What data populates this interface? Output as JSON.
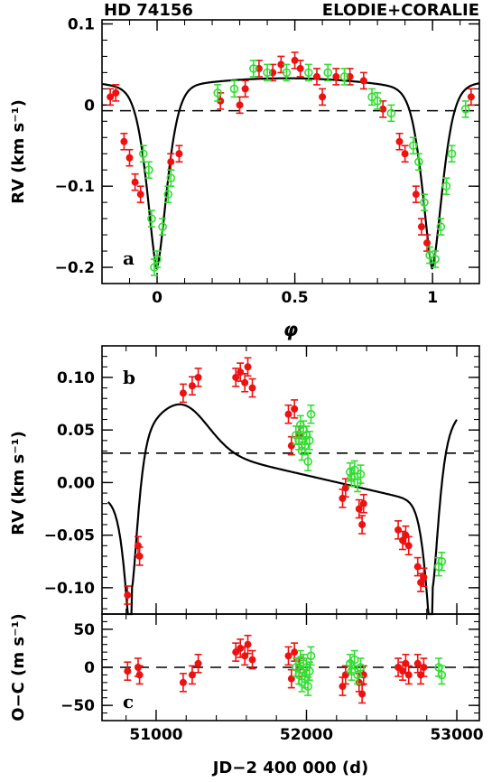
{
  "chart_data": [
    {
      "panel_label": "a",
      "type": "scatter",
      "title_left": "HD 74156",
      "title_right": "ELODIE+CORALIE",
      "xlabel": "φ",
      "ylabel": "RV (km s⁻¹)",
      "xlim": [
        -0.2,
        1.17
      ],
      "ylim": [
        -0.22,
        0.105
      ],
      "xticks": [
        0,
        0.5,
        1
      ],
      "xtick_labels": [
        "0",
        "0.5",
        "1"
      ],
      "yticks": [
        -0.2,
        -0.1,
        0,
        0.1
      ],
      "ytick_labels": [
        "−0.2",
        "−0.1",
        "0",
        "0.1"
      ],
      "reference_line_y": -0.007,
      "model_curve_color": "#000000",
      "series": [
        {
          "color": "#ee1111",
          "marker": "filled-circle",
          "points": [
            [
              -0.17,
              0.01
            ],
            [
              -0.15,
              0.015
            ],
            [
              -0.12,
              -0.045
            ],
            [
              -0.1,
              -0.065
            ],
            [
              -0.08,
              -0.095
            ],
            [
              -0.06,
              -0.11
            ],
            [
              0.05,
              -0.07
            ],
            [
              0.08,
              -0.06
            ],
            [
              0.23,
              0.005
            ],
            [
              0.3,
              0.0
            ],
            [
              0.32,
              0.02
            ],
            [
              0.37,
              0.045
            ],
            [
              0.42,
              0.04
            ],
            [
              0.45,
              0.05
            ],
            [
              0.5,
              0.055
            ],
            [
              0.52,
              0.045
            ],
            [
              0.58,
              0.035
            ],
            [
              0.6,
              0.01
            ],
            [
              0.65,
              0.035
            ],
            [
              0.7,
              0.035
            ],
            [
              0.75,
              0.03
            ],
            [
              0.82,
              -0.005
            ],
            [
              0.88,
              -0.045
            ],
            [
              0.9,
              -0.06
            ],
            [
              0.94,
              -0.11
            ],
            [
              0.96,
              -0.15
            ],
            [
              0.98,
              -0.17
            ],
            [
              1.14,
              0.01
            ]
          ]
        },
        {
          "color": "#33dd33",
          "marker": "open-circle",
          "points": [
            [
              -0.05,
              -0.06
            ],
            [
              -0.03,
              -0.08
            ],
            [
              -0.02,
              -0.14
            ],
            [
              -0.01,
              -0.2
            ],
            [
              0.0,
              -0.19
            ],
            [
              0.02,
              -0.15
            ],
            [
              0.04,
              -0.11
            ],
            [
              0.05,
              -0.09
            ],
            [
              0.22,
              0.015
            ],
            [
              0.28,
              0.02
            ],
            [
              0.35,
              0.045
            ],
            [
              0.4,
              0.04
            ],
            [
              0.47,
              0.04
            ],
            [
              0.55,
              0.04
            ],
            [
              0.62,
              0.04
            ],
            [
              0.68,
              0.035
            ],
            [
              0.78,
              0.01
            ],
            [
              0.8,
              0.005
            ],
            [
              0.85,
              -0.01
            ],
            [
              0.93,
              -0.05
            ],
            [
              0.95,
              -0.07
            ],
            [
              0.97,
              -0.12
            ],
            [
              0.99,
              -0.185
            ],
            [
              1.01,
              -0.19
            ],
            [
              1.03,
              -0.15
            ],
            [
              1.05,
              -0.1
            ],
            [
              1.07,
              -0.06
            ],
            [
              1.12,
              -0.005
            ]
          ]
        }
      ]
    },
    {
      "panel_label": "b",
      "type": "scatter",
      "ylabel": "RV (km s⁻¹)",
      "xlim": [
        50640,
        53150
      ],
      "ylim": [
        -0.125,
        0.13
      ],
      "xticks": [
        51000,
        52000,
        53000
      ],
      "yticks": [
        -0.1,
        -0.05,
        0.0,
        0.05,
        0.1
      ],
      "ytick_labels": [
        "−0.10",
        "−0.05",
        "0.00",
        "0.05",
        "0.10"
      ],
      "reference_line_y": 0.028,
      "series": [
        {
          "color": "#ee1111",
          "marker": "filled-circle",
          "points": [
            [
              50810,
              -0.107
            ],
            [
              50880,
              -0.06
            ],
            [
              50890,
              -0.07
            ],
            [
              51180,
              0.085
            ],
            [
              51240,
              0.092
            ],
            [
              51280,
              0.1
            ],
            [
              51530,
              0.1
            ],
            [
              51560,
              0.105
            ],
            [
              51590,
              0.095
            ],
            [
              51610,
              0.11
            ],
            [
              51640,
              0.09
            ],
            [
              51880,
              0.065
            ],
            [
              51900,
              0.035
            ],
            [
              51920,
              0.07
            ],
            [
              51950,
              0.045
            ],
            [
              52240,
              -0.015
            ],
            [
              52260,
              -0.005
            ],
            [
              52350,
              -0.025
            ],
            [
              52370,
              -0.04
            ],
            [
              52380,
              -0.02
            ],
            [
              52610,
              -0.045
            ],
            [
              52640,
              -0.055
            ],
            [
              52660,
              -0.05
            ],
            [
              52680,
              -0.06
            ],
            [
              52740,
              -0.08
            ],
            [
              52760,
              -0.095
            ],
            [
              52780,
              -0.09
            ]
          ]
        },
        {
          "color": "#33dd33",
          "marker": "open-circle",
          "points": [
            [
              51930,
              0.045
            ],
            [
              51950,
              0.04
            ],
            [
              51960,
              0.055
            ],
            [
              51970,
              0.03
            ],
            [
              51980,
              0.05
            ],
            [
              51990,
              0.035
            ],
            [
              52000,
              0.045
            ],
            [
              52010,
              0.02
            ],
            [
              52020,
              0.04
            ],
            [
              52030,
              0.065
            ],
            [
              52290,
              0.01
            ],
            [
              52300,
              0.005
            ],
            [
              52320,
              0.012
            ],
            [
              52340,
              0.0
            ],
            [
              52360,
              0.008
            ],
            [
              52880,
              -0.08
            ],
            [
              52900,
              -0.075
            ]
          ]
        }
      ]
    },
    {
      "panel_label": "c",
      "type": "scatter",
      "xlabel": "JD−2 400 000 (d)",
      "ylabel": "O−C (m s⁻¹)",
      "xlim": [
        50640,
        53150
      ],
      "ylim": [
        -70,
        70
      ],
      "xticks": [
        51000,
        52000,
        53000
      ],
      "yticks": [
        -50,
        0,
        50
      ],
      "ytick_labels": [
        "−50",
        "0",
        "50"
      ],
      "reference_line_y": 0,
      "series": [
        {
          "color": "#ee1111",
          "marker": "filled-circle",
          "points": [
            [
              50810,
              -5
            ],
            [
              50880,
              0
            ],
            [
              50890,
              -10
            ],
            [
              51180,
              -20
            ],
            [
              51240,
              -10
            ],
            [
              51280,
              5
            ],
            [
              51530,
              20
            ],
            [
              51560,
              25
            ],
            [
              51590,
              15
            ],
            [
              51610,
              30
            ],
            [
              51640,
              10
            ],
            [
              51880,
              15
            ],
            [
              51900,
              -15
            ],
            [
              51920,
              20
            ],
            [
              51950,
              0
            ],
            [
              52240,
              -25
            ],
            [
              52260,
              -10
            ],
            [
              52350,
              -20
            ],
            [
              52370,
              -35
            ],
            [
              52380,
              -10
            ],
            [
              52610,
              0
            ],
            [
              52640,
              -5
            ],
            [
              52660,
              5
            ],
            [
              52680,
              -10
            ],
            [
              52740,
              5
            ],
            [
              52760,
              -10
            ],
            [
              52780,
              0
            ]
          ]
        },
        {
          "color": "#33dd33",
          "marker": "open-circle",
          "points": [
            [
              51930,
              0
            ],
            [
              51950,
              -10
            ],
            [
              51960,
              10
            ],
            [
              51970,
              -20
            ],
            [
              51980,
              5
            ],
            [
              51990,
              -15
            ],
            [
              52000,
              0
            ],
            [
              52010,
              -25
            ],
            [
              52020,
              -5
            ],
            [
              52030,
              15
            ],
            [
              52290,
              5
            ],
            [
              52300,
              -5
            ],
            [
              52320,
              10
            ],
            [
              52340,
              -10
            ],
            [
              52360,
              0
            ],
            [
              52880,
              0
            ],
            [
              52900,
              -10
            ]
          ]
        }
      ]
    }
  ]
}
